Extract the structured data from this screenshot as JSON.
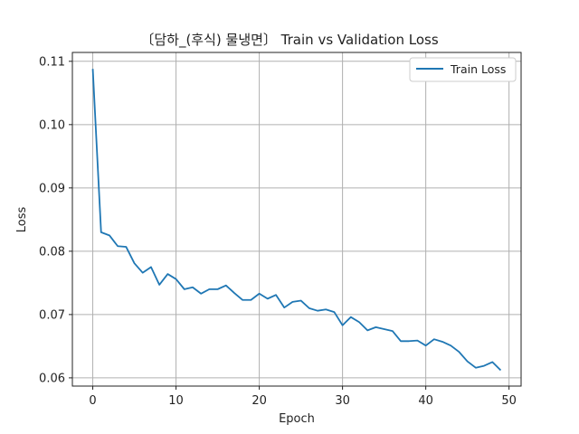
{
  "chart_data": {
    "type": "line",
    "title": "〔담하_(후식) 물냉면〕 Train vs Validation Loss",
    "xlabel": "Epoch",
    "ylabel": "Loss",
    "xlim": [
      -2.45,
      51.45
    ],
    "ylim": [
      0.0587,
      0.1114
    ],
    "xticks": [
      0,
      10,
      20,
      30,
      40,
      50
    ],
    "xtick_labels": [
      "0",
      "10",
      "20",
      "30",
      "40",
      "50"
    ],
    "yticks": [
      0.06,
      0.07,
      0.08,
      0.09,
      0.1,
      0.11
    ],
    "ytick_labels": [
      "0.06",
      "0.07",
      "0.08",
      "0.09",
      "0.10",
      "0.11"
    ],
    "grid": true,
    "legend_position": "top-right",
    "series": [
      {
        "name": "Train Loss",
        "color": "#1f77b4",
        "x": [
          0,
          1,
          2,
          3,
          4,
          5,
          6,
          7,
          8,
          9,
          10,
          11,
          12,
          13,
          14,
          15,
          16,
          17,
          18,
          19,
          20,
          21,
          22,
          23,
          24,
          25,
          26,
          27,
          28,
          29,
          30,
          31,
          32,
          33,
          34,
          35,
          36,
          37,
          38,
          39,
          40,
          41,
          42,
          43,
          44,
          45,
          46,
          47,
          48,
          49
        ],
        "y": [
          0.1088,
          0.083,
          0.0825,
          0.0808,
          0.0807,
          0.0781,
          0.0766,
          0.0775,
          0.0747,
          0.0764,
          0.0756,
          0.074,
          0.0743,
          0.0733,
          0.074,
          0.074,
          0.0746,
          0.0734,
          0.0723,
          0.0723,
          0.0733,
          0.0725,
          0.0731,
          0.0711,
          0.072,
          0.0722,
          0.071,
          0.0706,
          0.0708,
          0.0704,
          0.0683,
          0.0696,
          0.0688,
          0.0675,
          0.068,
          0.0677,
          0.0674,
          0.0658,
          0.0658,
          0.0659,
          0.0651,
          0.0661,
          0.0657,
          0.0651,
          0.0641,
          0.0626,
          0.0616,
          0.0619,
          0.0625,
          0.0612
        ]
      }
    ]
  }
}
